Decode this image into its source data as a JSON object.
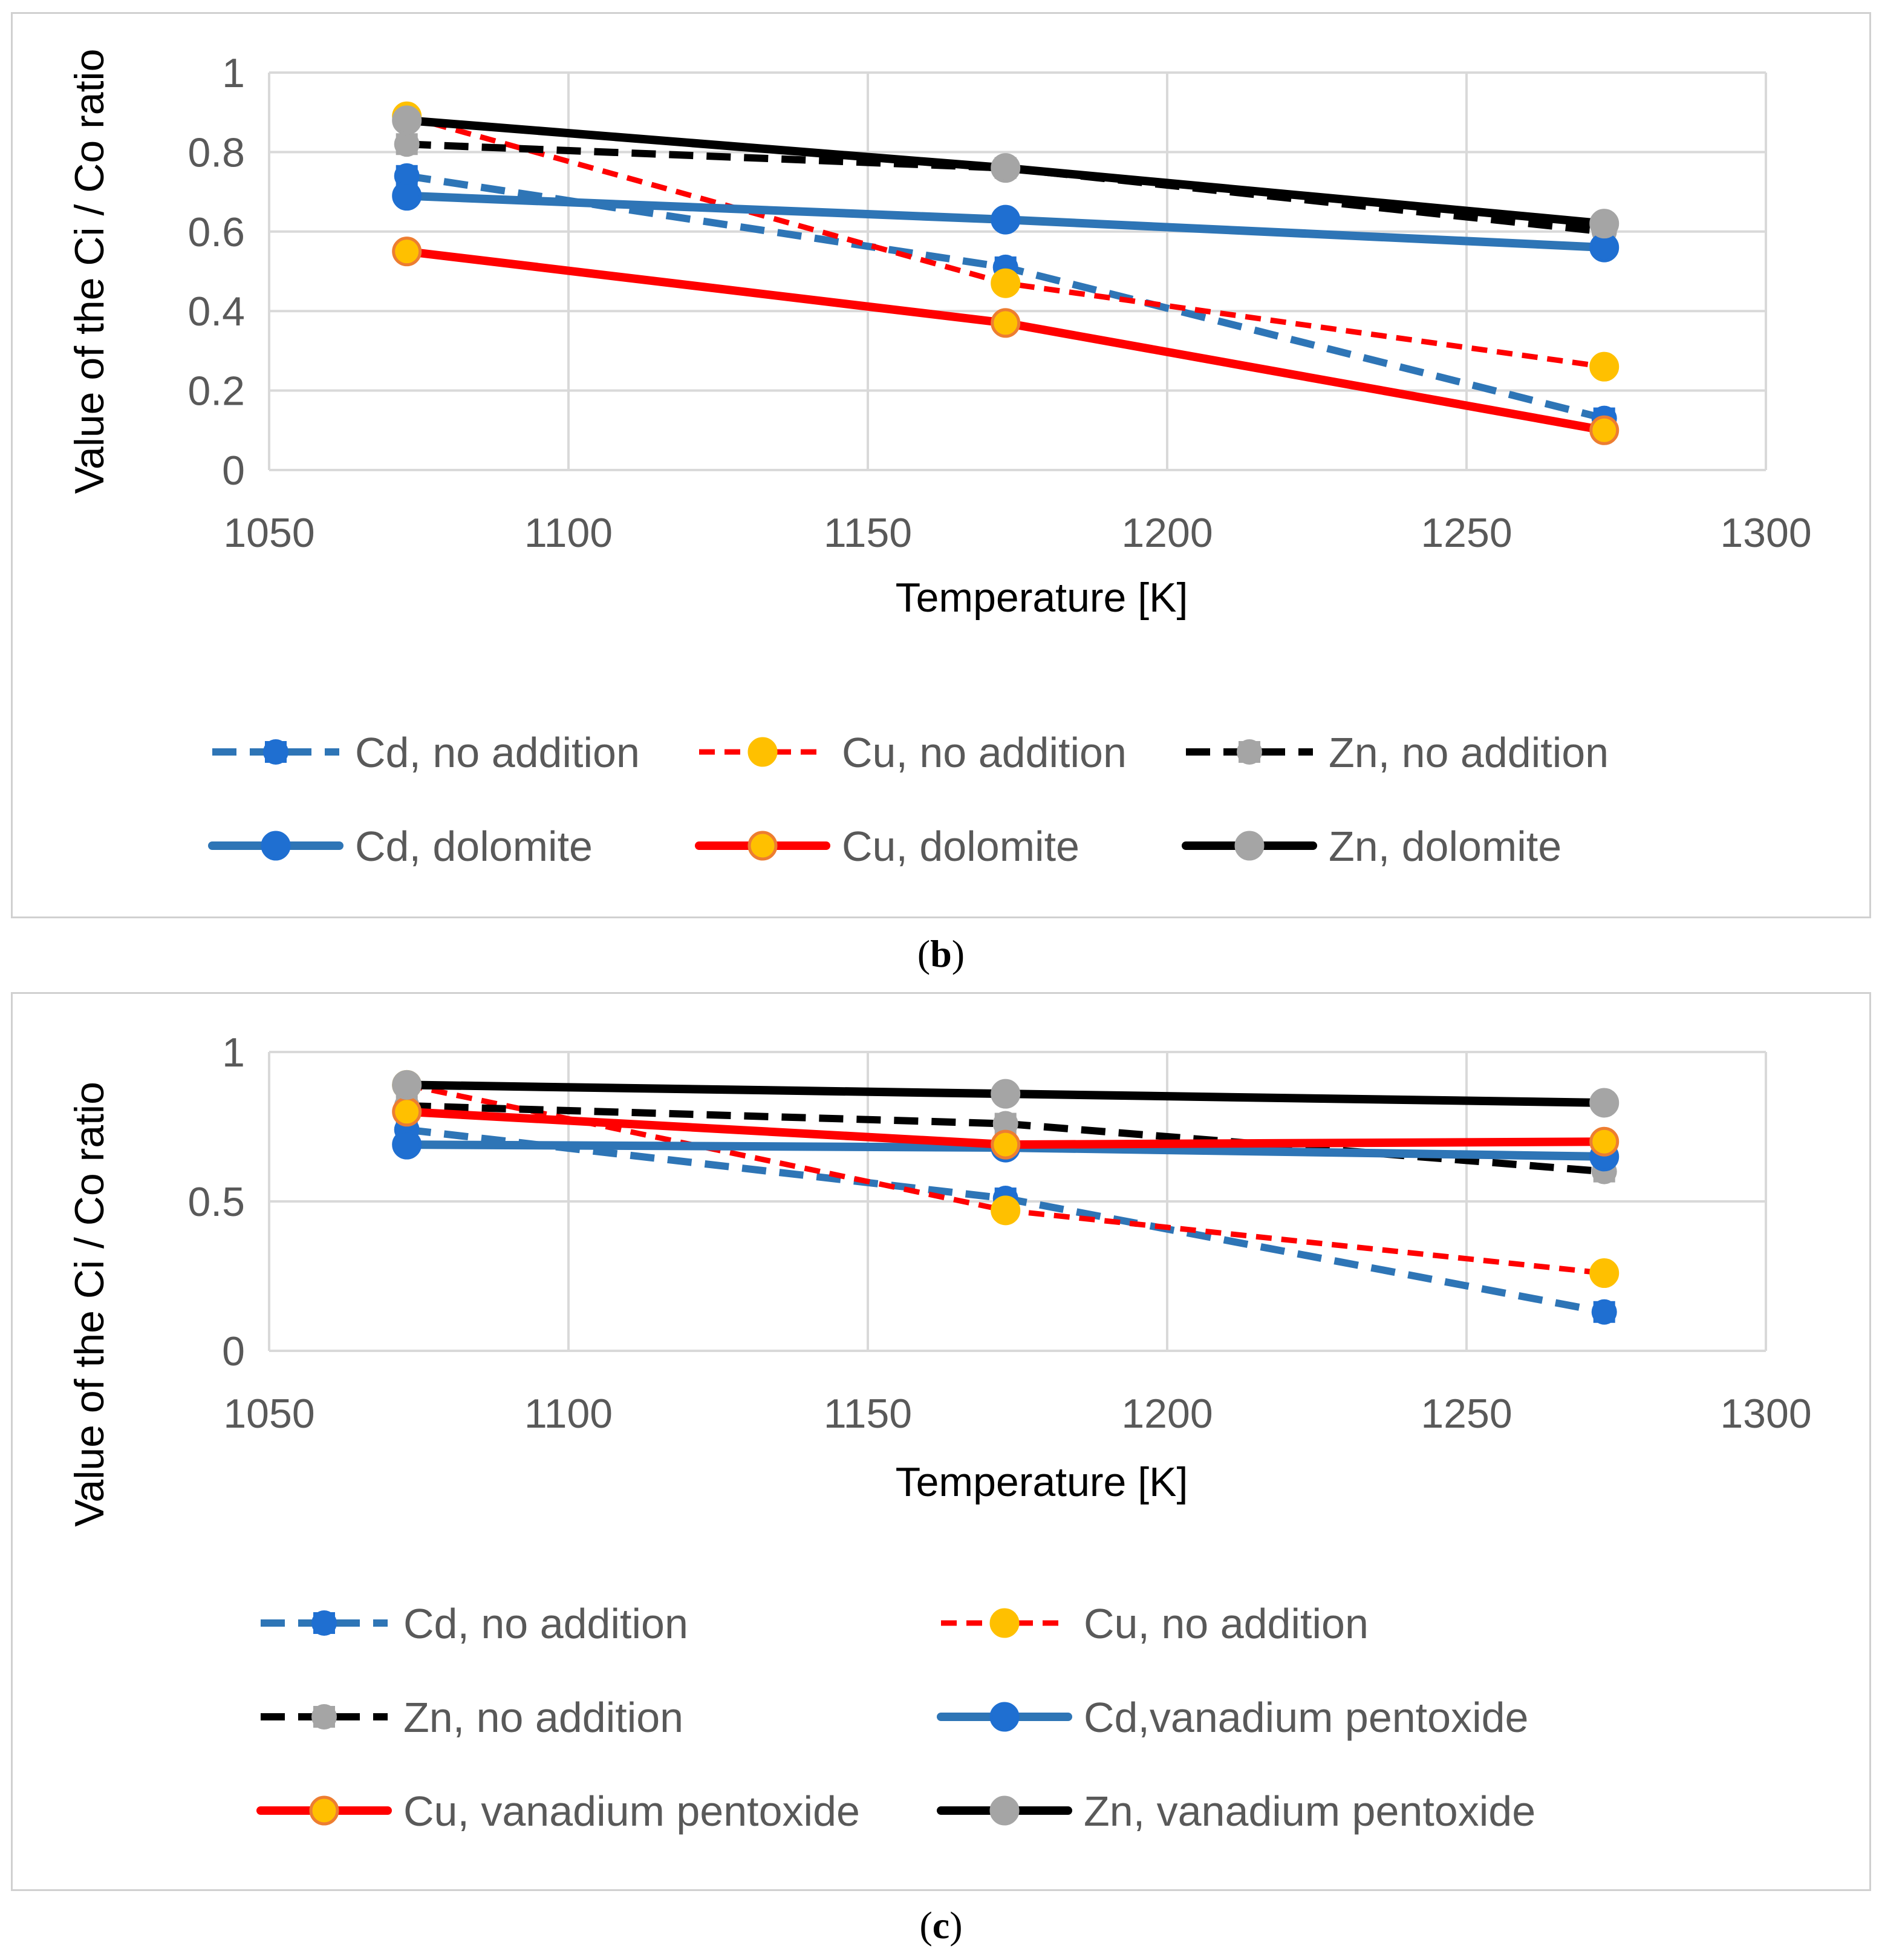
{
  "chart_data": [
    {
      "type": "line",
      "panel_label": "b",
      "x": [
        1073,
        1173,
        1273
      ],
      "xlim": [
        1050,
        1300
      ],
      "ylim": [
        0,
        1
      ],
      "xticks": [
        "1050",
        "1100",
        "1150",
        "1200",
        "1250",
        "1300"
      ],
      "yticks": [
        "0",
        "0.2",
        "0.4",
        "0.6",
        "0.8",
        "1"
      ],
      "xlabel": "Temperature [K]",
      "ylabel": "Value of the Ci / Co ratio",
      "grid": true,
      "legend_position": "bottom",
      "series": [
        {
          "name": "Cd, no addition",
          "values": [
            0.74,
            0.51,
            0.13
          ],
          "line_color": "#2e75b6",
          "marker_color": "#1f6fd1",
          "marker_border": "#1f6fd1",
          "style": "dashed",
          "marker": "square"
        },
        {
          "name": "Cu, no addition",
          "values": [
            0.89,
            0.47,
            0.26
          ],
          "line_color": "#ff0000",
          "marker_color": "#ffc000",
          "marker_border": "#ffc000",
          "style": "dashed-thin",
          "marker": "circle"
        },
        {
          "name": "Zn, no addition",
          "values": [
            0.82,
            0.76,
            0.6
          ],
          "line_color": "#000000",
          "marker_color": "#a5a5a5",
          "marker_border": "#a5a5a5",
          "style": "dashed",
          "marker": "square"
        },
        {
          "name": "Cd, dolomite",
          "values": [
            0.69,
            0.63,
            0.56
          ],
          "line_color": "#2e75b6",
          "marker_color": "#1f6fd1",
          "marker_border": "#1f6fd1",
          "style": "solid",
          "marker": "circle"
        },
        {
          "name": "Cu, dolomite",
          "values": [
            0.55,
            0.37,
            0.1
          ],
          "line_color": "#ff0000",
          "marker_color": "#ffc000",
          "marker_border": "#ed7d31",
          "style": "solid",
          "marker": "circle"
        },
        {
          "name": "Zn, dolomite",
          "values": [
            0.88,
            0.76,
            0.62
          ],
          "line_color": "#000000",
          "marker_color": "#a5a5a5",
          "marker_border": "#a5a5a5",
          "style": "solid",
          "marker": "circle"
        }
      ]
    },
    {
      "type": "line",
      "panel_label": "c",
      "x": [
        1073,
        1173,
        1273
      ],
      "xlim": [
        1050,
        1300
      ],
      "ylim": [
        0,
        1
      ],
      "xticks": [
        "1050",
        "1100",
        "1150",
        "1200",
        "1250",
        "1300"
      ],
      "yticks": [
        "0",
        "0.5",
        "1"
      ],
      "xlabel": "Temperature [K]",
      "ylabel": "Value of the Ci / Co ratio",
      "grid": true,
      "legend_position": "bottom",
      "series": [
        {
          "name": "Cd, no addition",
          "values": [
            0.74,
            0.51,
            0.13
          ],
          "line_color": "#2e75b6",
          "marker_color": "#1f6fd1",
          "marker_border": "#1f6fd1",
          "style": "dashed",
          "marker": "square"
        },
        {
          "name": "Cu, no addition",
          "values": [
            0.89,
            0.47,
            0.26
          ],
          "line_color": "#ff0000",
          "marker_color": "#ffc000",
          "marker_border": "#ffc000",
          "style": "dashed-thin",
          "marker": "circle"
        },
        {
          "name": "Zn, no addition",
          "values": [
            0.82,
            0.76,
            0.6
          ],
          "line_color": "#000000",
          "marker_color": "#a5a5a5",
          "marker_border": "#a5a5a5",
          "style": "dashed",
          "marker": "square"
        },
        {
          "name": "Cd,vanadium pentoxide",
          "values": [
            0.69,
            0.68,
            0.65
          ],
          "line_color": "#2e75b6",
          "marker_color": "#1f6fd1",
          "marker_border": "#1f6fd1",
          "style": "solid",
          "marker": "circle"
        },
        {
          "name": "Cu, vanadium pentoxide",
          "values": [
            0.8,
            0.69,
            0.7
          ],
          "line_color": "#ff0000",
          "marker_color": "#ffc000",
          "marker_border": "#ed7d31",
          "style": "solid",
          "marker": "circle"
        },
        {
          "name": "Zn, vanadium pentoxide",
          "values": [
            0.89,
            0.86,
            0.83
          ],
          "line_color": "#000000",
          "marker_color": "#a5a5a5",
          "marker_border": "#a5a5a5",
          "style": "solid",
          "marker": "circle"
        }
      ]
    }
  ]
}
